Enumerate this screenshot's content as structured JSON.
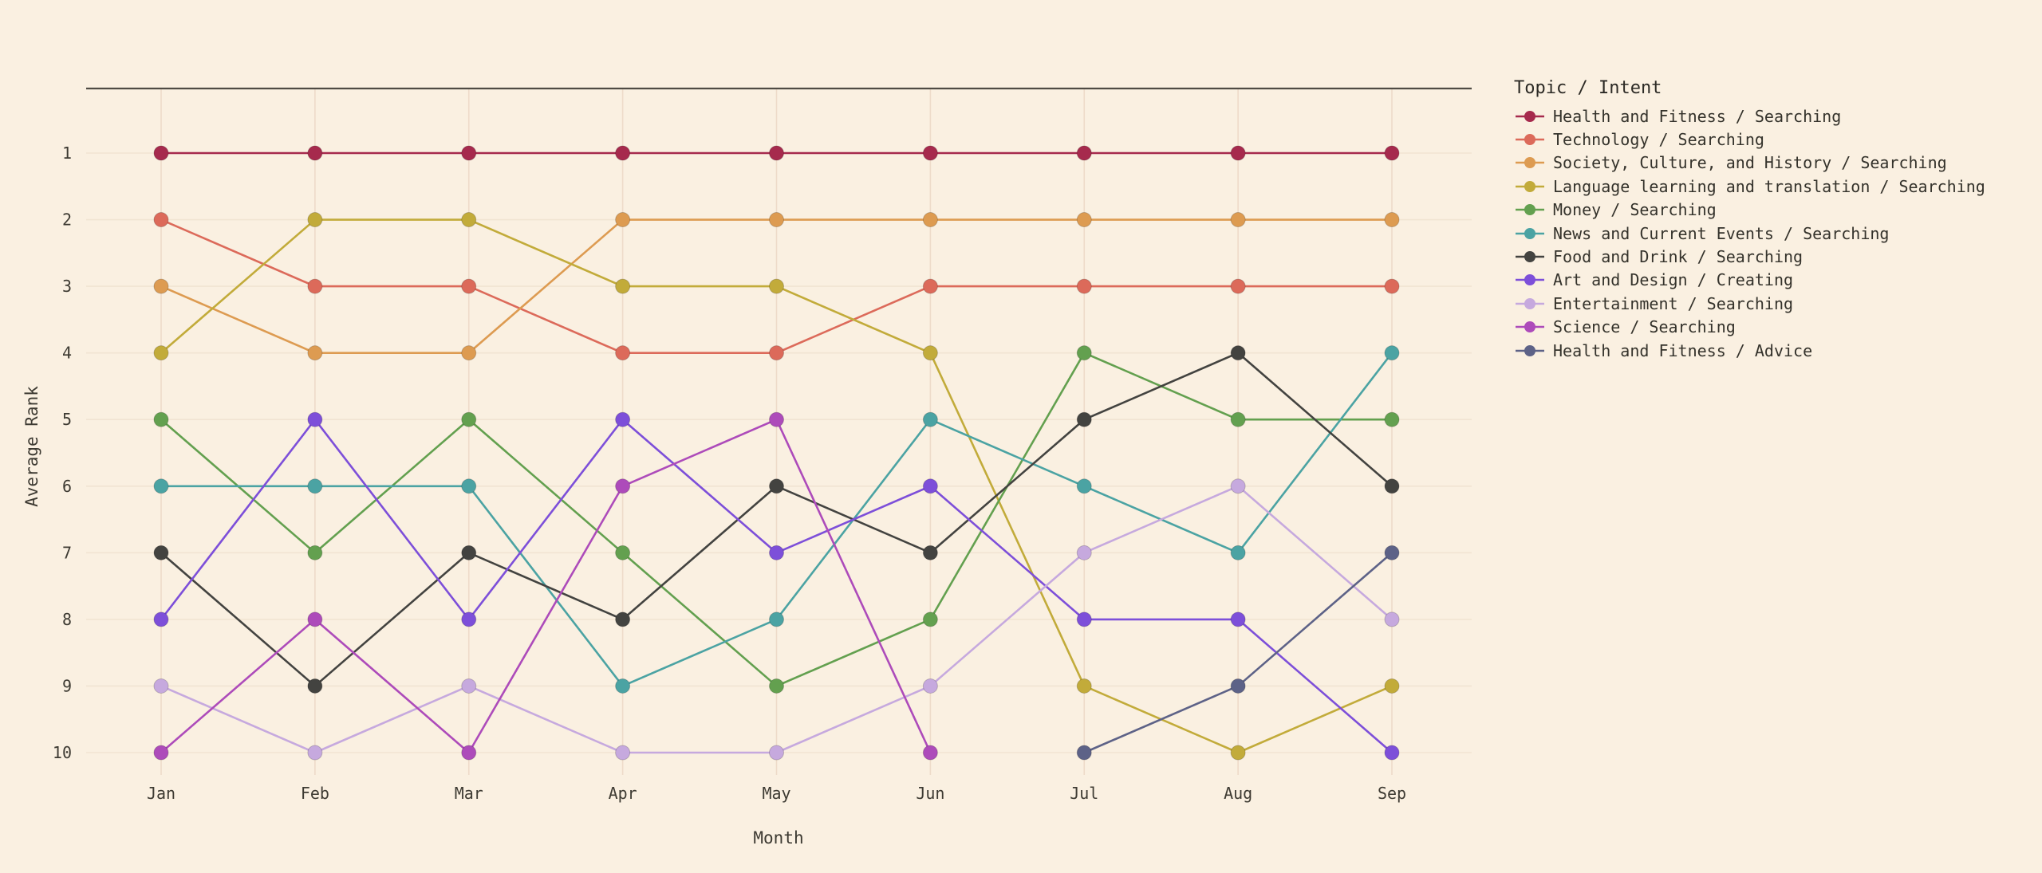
{
  "theme": {
    "background": "#faf0e1",
    "text_color": "#3d3a32",
    "spine_color": "#4f4b44",
    "grid_vertical_color": "#eedbc9",
    "grid_horizontal_color": "#f1e4d2"
  },
  "chart_data": {
    "type": "line",
    "variant": "bump-chart",
    "xlabel": "Month",
    "ylabel": "Average Rank",
    "legend_title": "Topic / Intent",
    "legend_position": "right",
    "grid": true,
    "y_axis_inverted": true,
    "y_ticks": [
      1,
      2,
      3,
      4,
      5,
      6,
      7,
      8,
      9,
      10
    ],
    "x_categories": [
      "Jan",
      "Feb",
      "Mar",
      "Apr",
      "May",
      "Jun",
      "Jul",
      "Aug",
      "Sep"
    ],
    "series": [
      {
        "name": "Health and Fitness / Searching",
        "color": "#a62a4d",
        "values": [
          1,
          1,
          1,
          1,
          1,
          1,
          1,
          1,
          1
        ]
      },
      {
        "name": "Technology / Searching",
        "color": "#dc6a5a",
        "values": [
          2,
          3,
          3,
          4,
          4,
          3,
          3,
          3,
          3
        ]
      },
      {
        "name": "Society, Culture, and History / Searching",
        "color": "#dd9b51",
        "values": [
          3,
          4,
          4,
          2,
          2,
          2,
          2,
          2,
          2
        ]
      },
      {
        "name": "Language learning and translation / Searching",
        "color": "#c2ab3a",
        "values": [
          4,
          2,
          2,
          3,
          3,
          4,
          9,
          10,
          9
        ]
      },
      {
        "name": "Money / Searching",
        "color": "#63a04f",
        "values": [
          5,
          7,
          5,
          7,
          9,
          8,
          4,
          5,
          5
        ]
      },
      {
        "name": "News and Current Events / Searching",
        "color": "#4ba3a3",
        "values": [
          6,
          6,
          6,
          9,
          8,
          5,
          6,
          7,
          4
        ]
      },
      {
        "name": "Food and Drink / Searching",
        "color": "#434340",
        "values": [
          7,
          9,
          7,
          8,
          6,
          7,
          5,
          4,
          6
        ]
      },
      {
        "name": "Art and Design / Creating",
        "color": "#7d4fd9",
        "values": [
          8,
          5,
          8,
          5,
          7,
          6,
          8,
          8,
          10
        ]
      },
      {
        "name": "Entertainment / Searching",
        "color": "#c6a9de",
        "values": [
          9,
          10,
          9,
          10,
          10,
          9,
          7,
          6,
          8
        ]
      },
      {
        "name": "Science / Searching",
        "color": "#ad4bba",
        "values": [
          10,
          8,
          10,
          6,
          5,
          10,
          null,
          null,
          null
        ]
      },
      {
        "name": "Health and Fitness / Advice",
        "color": "#5d6287",
        "values": [
          null,
          null,
          null,
          null,
          null,
          null,
          10,
          9,
          7
        ]
      }
    ]
  }
}
